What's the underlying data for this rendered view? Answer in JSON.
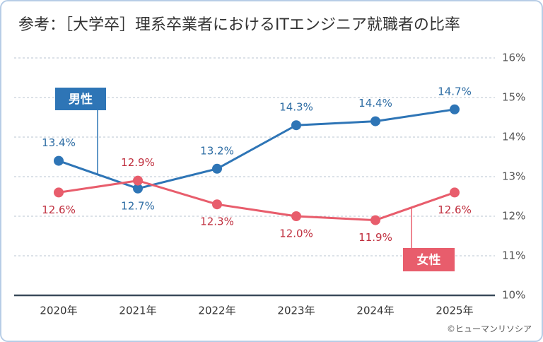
{
  "chart_data": {
    "type": "line",
    "title": "参考：［大学卒］理系卒業者におけるITエンジニア就職者の比率",
    "source": "©ヒューマンリソシア",
    "categories": [
      "2020年",
      "2021年",
      "2022年",
      "2023年",
      "2024年",
      "2025年"
    ],
    "series": [
      {
        "name": "男性",
        "color": "#2e75b6",
        "values": [
          13.4,
          12.7,
          13.2,
          14.3,
          14.4,
          14.7
        ],
        "value_labels": [
          "13.4%",
          "12.7%",
          "13.2%",
          "14.3%",
          "14.4%",
          "14.7%"
        ]
      },
      {
        "name": "女性",
        "color": "#e85d6c",
        "values": [
          12.6,
          12.9,
          12.3,
          12.0,
          11.9,
          12.6
        ],
        "value_labels": [
          "12.6%",
          "12.9%",
          "12.3%",
          "12.0%",
          "11.9%",
          "12.6%"
        ]
      }
    ],
    "ylim": [
      10,
      16
    ],
    "yticks": [
      {
        "value": 10,
        "label": "10%"
      },
      {
        "value": 11,
        "label": "11%"
      },
      {
        "value": 12,
        "label": "12%"
      },
      {
        "value": 13,
        "label": "13%"
      },
      {
        "value": 14,
        "label": "14%"
      },
      {
        "value": 15,
        "label": "15%"
      },
      {
        "value": 16,
        "label": "16%"
      }
    ],
    "grid": true
  }
}
